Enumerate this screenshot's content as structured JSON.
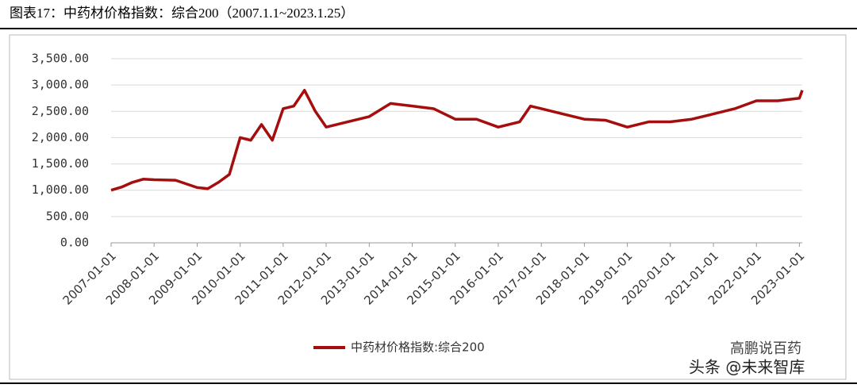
{
  "header": "图表17：中药材价格指数：综合200（2007.1.1~2023.1.25）",
  "watermark": [
    "高鹏说百药",
    "头条 @未来智库"
  ],
  "chart_data": {
    "type": "line",
    "x": [
      "2007-01-01",
      "2007-04-01",
      "2007-07-01",
      "2007-10-01",
      "2008-01-01",
      "2008-07-01",
      "2009-01-01",
      "2009-04-01",
      "2009-07-01",
      "2009-10-01",
      "2010-01-01",
      "2010-04-01",
      "2010-07-01",
      "2010-10-01",
      "2011-01-01",
      "2011-04-01",
      "2011-07-01",
      "2011-10-01",
      "2012-01-01",
      "2012-07-01",
      "2013-01-01",
      "2013-07-01",
      "2014-01-01",
      "2014-07-01",
      "2015-01-01",
      "2015-07-01",
      "2016-01-01",
      "2016-07-01",
      "2016-10-01",
      "2017-01-01",
      "2017-07-01",
      "2018-01-01",
      "2018-07-01",
      "2019-01-01",
      "2019-07-01",
      "2020-01-01",
      "2020-07-01",
      "2021-01-01",
      "2021-07-01",
      "2022-01-01",
      "2022-07-01",
      "2023-01-01",
      "2023-01-25"
    ],
    "series": [
      {
        "name": "中药材价格指数:综合200",
        "color": "#a50e0e",
        "values": [
          1000,
          1060,
          1150,
          1210,
          1200,
          1190,
          1050,
          1030,
          1150,
          1300,
          2000,
          1950,
          2250,
          1950,
          2550,
          2600,
          2900,
          2500,
          2200,
          2300,
          2400,
          2650,
          2600,
          2550,
          2350,
          2350,
          2200,
          2300,
          2600,
          2550,
          2450,
          2350,
          2330,
          2200,
          2300,
          2300,
          2350,
          2450,
          2550,
          2700,
          2700,
          2750,
          2900
        ]
      }
    ],
    "xlim": [
      "2007-01-01",
      "2023-01-25"
    ],
    "xticks": [
      "2007-01-01",
      "2008-01-01",
      "2009-01-01",
      "2010-01-01",
      "2011-01-01",
      "2012-01-01",
      "2013-01-01",
      "2014-01-01",
      "2015-01-01",
      "2016-01-01",
      "2017-01-01",
      "2018-01-01",
      "2019-01-01",
      "2020-01-01",
      "2021-01-01",
      "2022-01-01",
      "2023-01-01"
    ],
    "ylim": [
      0,
      3500
    ],
    "yticks": [
      {
        "value": 0,
        "label": "0.00"
      },
      {
        "value": 500,
        "label": "500.00"
      },
      {
        "value": 1000,
        "label": "1,000.00"
      },
      {
        "value": 1500,
        "label": "1,500.00"
      },
      {
        "value": 2000,
        "label": "2,000.00"
      },
      {
        "value": 2500,
        "label": "2,500.00"
      },
      {
        "value": 3000,
        "label": "3,000.00"
      },
      {
        "value": 3500,
        "label": "3,500.00"
      }
    ],
    "grid": true,
    "legend": "bottom"
  }
}
